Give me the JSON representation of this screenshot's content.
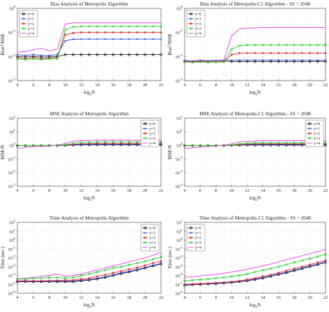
{
  "chart_data": [
    {
      "type": "line",
      "title": "Bias Analysis of Metropolis Algorithm",
      "xlabel": "log2N",
      "ylabel": "Bias2/MSE",
      "xlim": [
        4,
        22
      ],
      "yscale": "log",
      "ylim_exp": [
        -3,
        0
      ],
      "xticks": [
        4,
        6,
        8,
        10,
        12,
        14,
        16,
        18,
        20,
        22
      ],
      "ytick_exp": [
        -3,
        -2,
        -1,
        0
      ],
      "grid": true,
      "legend": "upper-left",
      "x": [
        4,
        5,
        6,
        7,
        8,
        9,
        10,
        11,
        12,
        13,
        14,
        15,
        16,
        17,
        18,
        19,
        20,
        21,
        22
      ],
      "series": [
        {
          "name": "y=0",
          "color": "#222222",
          "marker": "o",
          "values": [
            0.01,
            0.0095,
            0.01,
            0.0095,
            0.0095,
            0.01,
            0.012,
            0.012,
            0.012,
            0.012,
            0.012,
            0.012,
            0.012,
            0.012,
            0.012,
            0.012,
            0.012,
            0.012,
            0.012
          ]
        },
        {
          "name": "y=1",
          "color": "#1f3fd8",
          "marker": "+",
          "values": [
            0.012,
            0.011,
            0.012,
            0.011,
            0.011,
            0.012,
            0.045,
            0.052,
            0.053,
            0.053,
            0.053,
            0.053,
            0.053,
            0.053,
            0.053,
            0.053,
            0.053,
            0.053,
            0.053
          ]
        },
        {
          "name": "y=2",
          "color": "#e0202a",
          "marker": "*",
          "values": [
            0.009,
            0.008,
            0.009,
            0.008,
            0.0085,
            0.009,
            0.08,
            0.095,
            0.1,
            0.1,
            0.1,
            0.1,
            0.1,
            0.1,
            0.1,
            0.1,
            0.1,
            0.1,
            0.1
          ]
        },
        {
          "name": "y=3",
          "color": "#21d42a",
          "marker": "x",
          "values": [
            0.008,
            0.0075,
            0.008,
            0.0075,
            0.008,
            0.008,
            0.13,
            0.17,
            0.18,
            0.18,
            0.18,
            0.18,
            0.18,
            0.18,
            0.18,
            0.18,
            0.18,
            0.18,
            0.18
          ]
        },
        {
          "name": "y=4",
          "color": "#e23be2",
          "marker": "-",
          "values": [
            0.015,
            0.016,
            0.019,
            0.022,
            0.017,
            0.02,
            0.22,
            0.25,
            0.25,
            0.25,
            0.25,
            0.25,
            0.25,
            0.25,
            0.25,
            0.25,
            0.25,
            0.25,
            0.25
          ]
        }
      ]
    },
    {
      "type": "line",
      "title": "Bias Analysis of Metropolis-C1 Algorithm - SS = 2048",
      "xlabel": "log2N",
      "ylabel": "Bias2/MSE",
      "xlim": [
        4,
        22
      ],
      "yscale": "log",
      "ylim_exp": [
        -3,
        0
      ],
      "xticks": [
        4,
        6,
        8,
        10,
        12,
        14,
        16,
        18,
        20,
        22
      ],
      "ytick_exp": [
        -3,
        -2,
        -1,
        0
      ],
      "grid": true,
      "legend": "upper-left",
      "x": [
        4,
        5,
        6,
        7,
        8,
        9,
        10,
        11,
        12,
        13,
        14,
        15,
        16,
        17,
        18,
        19,
        20,
        21,
        22
      ],
      "series": [
        {
          "name": "y=0",
          "color": "#222222",
          "marker": "o",
          "values": [
            0.0065,
            0.006,
            0.0065,
            0.006,
            0.0062,
            0.0065,
            0.0062,
            0.0062,
            0.0062,
            0.0062,
            0.0062,
            0.0062,
            0.0062,
            0.0062,
            0.0062,
            0.0062,
            0.0062,
            0.0062,
            0.0062
          ]
        },
        {
          "name": "y=1",
          "color": "#1f3fd8",
          "marker": "+",
          "values": [
            0.007,
            0.0065,
            0.007,
            0.0065,
            0.0068,
            0.007,
            0.007,
            0.007,
            0.007,
            0.007,
            0.007,
            0.007,
            0.007,
            0.007,
            0.007,
            0.007,
            0.007,
            0.007,
            0.007
          ]
        },
        {
          "name": "y=2",
          "color": "#e0202a",
          "marker": "*",
          "values": [
            0.006,
            0.0058,
            0.006,
            0.0058,
            0.006,
            0.006,
            0.012,
            0.014,
            0.014,
            0.014,
            0.014,
            0.014,
            0.014,
            0.014,
            0.014,
            0.014,
            0.014,
            0.014,
            0.014
          ]
        },
        {
          "name": "y=3",
          "color": "#21d42a",
          "marker": "x",
          "values": [
            0.0062,
            0.0058,
            0.0062,
            0.0058,
            0.006,
            0.0062,
            0.02,
            0.028,
            0.03,
            0.03,
            0.03,
            0.03,
            0.03,
            0.03,
            0.03,
            0.03,
            0.03,
            0.03,
            0.03
          ]
        },
        {
          "name": "y=4",
          "color": "#e23be2",
          "marker": "-",
          "values": [
            0.007,
            0.0065,
            0.0072,
            0.0068,
            0.007,
            0.0072,
            0.07,
            0.14,
            0.15,
            0.155,
            0.16,
            0.16,
            0.16,
            0.16,
            0.16,
            0.16,
            0.16,
            0.16,
            0.16
          ]
        }
      ]
    },
    {
      "type": "line",
      "title": "MSE Analysis of Metropolis Algorithm",
      "xlabel": "log2N",
      "ylabel": "MSE/N",
      "xlim": [
        4,
        22
      ],
      "yscale": "log",
      "ylim_exp": [
        -3,
        2
      ],
      "xticks": [
        4,
        6,
        8,
        10,
        12,
        14,
        16,
        18,
        20,
        22
      ],
      "ytick_exp": [
        -3,
        -2,
        -1,
        0,
        1,
        2
      ],
      "grid": true,
      "legend": "upper-right",
      "x": [
        4,
        5,
        6,
        7,
        8,
        9,
        10,
        11,
        12,
        13,
        14,
        15,
        16,
        17,
        18,
        19,
        20,
        21,
        22
      ],
      "series": [
        {
          "name": "y=0",
          "color": "#222222",
          "marker": "o",
          "values": [
            0.95,
            0.95,
            0.95,
            0.95,
            0.96,
            0.97,
            1.0,
            1.05,
            1.08,
            1.1,
            1.1,
            1.1,
            1.1,
            1.1,
            1.1,
            1.1,
            1.1,
            1.1,
            1.1
          ]
        },
        {
          "name": "y=1",
          "color": "#1f3fd8",
          "marker": "+",
          "values": [
            0.96,
            0.96,
            0.96,
            0.96,
            0.97,
            0.98,
            1.02,
            1.1,
            1.15,
            1.18,
            1.2,
            1.2,
            1.2,
            1.2,
            1.2,
            1.2,
            1.2,
            1.2,
            1.2
          ]
        },
        {
          "name": "y=2",
          "color": "#e0202a",
          "marker": "*",
          "values": [
            0.97,
            0.97,
            0.97,
            0.97,
            0.98,
            0.99,
            1.05,
            1.2,
            1.3,
            1.35,
            1.38,
            1.4,
            1.4,
            1.4,
            1.4,
            1.4,
            1.4,
            1.4,
            1.4
          ]
        },
        {
          "name": "y=3",
          "color": "#21d42a",
          "marker": "x",
          "values": [
            0.98,
            0.98,
            0.98,
            0.98,
            0.99,
            1.0,
            1.1,
            1.4,
            1.6,
            1.7,
            1.75,
            1.8,
            1.8,
            1.8,
            1.8,
            1.8,
            1.8,
            1.8,
            1.8
          ]
        },
        {
          "name": "y=4",
          "color": "#e23be2",
          "marker": "-",
          "values": [
            0.6,
            0.7,
            0.8,
            0.85,
            0.9,
            1.0,
            1.4,
            2.0,
            2.2,
            2.3,
            2.4,
            2.4,
            2.4,
            2.4,
            2.4,
            2.4,
            2.4,
            2.4,
            2.4
          ]
        }
      ]
    },
    {
      "type": "line",
      "title": "MSE Analysis of Metropolis-C1 Algorithm - SS = 2048",
      "xlabel": "log2N",
      "ylabel": "MSE/N",
      "xlim": [
        4,
        22
      ],
      "yscale": "log",
      "ylim_exp": [
        -3,
        2
      ],
      "xticks": [
        4,
        6,
        8,
        10,
        12,
        14,
        16,
        18,
        20,
        22
      ],
      "ytick_exp": [
        -3,
        -2,
        -1,
        0,
        1,
        2
      ],
      "grid": true,
      "legend": "upper-right",
      "x": [
        4,
        5,
        6,
        7,
        8,
        9,
        10,
        11,
        12,
        13,
        14,
        15,
        16,
        17,
        18,
        19,
        20,
        21,
        22
      ],
      "series": [
        {
          "name": "y=0",
          "color": "#222222",
          "marker": "o",
          "values": [
            0.95,
            0.95,
            0.95,
            0.95,
            0.96,
            0.97,
            1.0,
            1.03,
            1.05,
            1.05,
            1.05,
            1.05,
            1.05,
            1.05,
            1.05,
            1.05,
            1.05,
            1.05,
            1.05
          ]
        },
        {
          "name": "y=1",
          "color": "#1f3fd8",
          "marker": "+",
          "values": [
            0.96,
            0.96,
            0.96,
            0.96,
            0.97,
            0.98,
            1.02,
            1.08,
            1.12,
            1.14,
            1.15,
            1.15,
            1.15,
            1.15,
            1.15,
            1.15,
            1.15,
            1.15,
            1.15
          ]
        },
        {
          "name": "y=2",
          "color": "#e0202a",
          "marker": "*",
          "values": [
            0.97,
            0.97,
            0.97,
            0.97,
            0.98,
            0.99,
            1.04,
            1.15,
            1.25,
            1.3,
            1.3,
            1.3,
            1.3,
            1.3,
            1.3,
            1.3,
            1.3,
            1.3,
            1.3
          ]
        },
        {
          "name": "y=3",
          "color": "#21d42a",
          "marker": "x",
          "values": [
            0.98,
            0.98,
            0.98,
            0.98,
            0.99,
            1.0,
            1.08,
            1.3,
            1.45,
            1.5,
            1.55,
            1.55,
            1.55,
            1.55,
            1.55,
            1.55,
            1.55,
            1.55,
            1.55
          ]
        },
        {
          "name": "y=4",
          "color": "#e23be2",
          "marker": "-",
          "values": [
            0.6,
            0.65,
            0.75,
            0.82,
            0.9,
            1.0,
            1.3,
            1.8,
            2.0,
            2.1,
            2.2,
            2.2,
            2.2,
            2.2,
            2.2,
            2.2,
            2.2,
            2.2,
            2.2
          ]
        }
      ]
    },
    {
      "type": "line",
      "title": "Time Analysis of Metropolis Algorithm",
      "xlabel": "log2N",
      "ylabel": "Time (sec.)",
      "xlim": [
        4,
        22
      ],
      "yscale": "log",
      "ylim_exp": [
        -6,
        2
      ],
      "xticks": [
        4,
        6,
        8,
        10,
        12,
        14,
        16,
        18,
        20,
        22
      ],
      "ytick_exp": [
        -6,
        -5,
        -4,
        -3,
        -2,
        -1,
        0,
        1,
        2
      ],
      "grid": true,
      "legend": "upper-right",
      "x": [
        4,
        5,
        6,
        7,
        8,
        9,
        10,
        11,
        12,
        13,
        14,
        15,
        16,
        17,
        18,
        19,
        20,
        21,
        22
      ],
      "series": [
        {
          "name": "y=0",
          "color": "#222222",
          "marker": "o",
          "values": [
            2e-05,
            2e-05,
            2e-05,
            2e-05,
            2e-05,
            2e-05,
            2e-05,
            2e-05,
            2.5e-05,
            3e-05,
            4e-05,
            6e-05,
            0.0001,
            0.00016,
            0.00025,
            0.0004,
            0.0007,
            0.0012,
            0.002
          ]
        },
        {
          "name": "y=1",
          "color": "#1f3fd8",
          "marker": "+",
          "values": [
            2.2e-05,
            2.2e-05,
            2.2e-05,
            2.2e-05,
            2.2e-05,
            2.3e-05,
            2.3e-05,
            2.4e-05,
            3e-05,
            3.6e-05,
            5e-05,
            7e-05,
            0.00012,
            0.0002,
            0.0003,
            0.0005,
            0.0008,
            0.0014,
            0.0023
          ]
        },
        {
          "name": "y=2",
          "color": "#e0202a",
          "marker": "*",
          "values": [
            2.5e-05,
            2.5e-05,
            2.5e-05,
            2.5e-05,
            2.6e-05,
            2.8e-05,
            3e-05,
            3e-05,
            4e-05,
            5e-05,
            8e-05,
            0.00012,
            0.0002,
            0.0003,
            0.0005,
            0.0008,
            0.0014,
            0.0025,
            0.004
          ]
        },
        {
          "name": "y=3",
          "color": "#21d42a",
          "marker": "x",
          "values": [
            4e-05,
            4e-05,
            5e-05,
            5e-05,
            6e-05,
            6e-05,
            5e-05,
            6e-05,
            0.0001,
            0.00015,
            0.00025,
            0.0004,
            0.0007,
            0.001,
            0.0016,
            0.0025,
            0.004,
            0.007,
            0.012
          ]
        },
        {
          "name": "y=4",
          "color": "#e23be2",
          "marker": "-",
          "values": [
            4e-05,
            5e-05,
            6e-05,
            8e-05,
            0.0001,
            0.00015,
            8e-05,
            0.0001,
            0.00015,
            0.00025,
            0.0004,
            0.0007,
            0.0012,
            0.002,
            0.0035,
            0.006,
            0.01,
            0.02,
            0.04
          ]
        }
      ]
    },
    {
      "type": "line",
      "title": "Time Analysis of Metropolis-C1 Algorithm - SS = 2048",
      "xlabel": "log2N",
      "ylabel": "Time (sec.)",
      "xlim": [
        4,
        22
      ],
      "yscale": "log",
      "ylim_exp": [
        -6,
        2
      ],
      "xticks": [
        4,
        6,
        8,
        10,
        12,
        14,
        16,
        18,
        20,
        22
      ],
      "ytick_exp": [
        -6,
        -5,
        -4,
        -3,
        -2,
        -1,
        0,
        1,
        2
      ],
      "grid": true,
      "legend": "upper-left",
      "x": [
        4,
        5,
        6,
        7,
        8,
        9,
        10,
        11,
        12,
        13,
        14,
        15,
        16,
        17,
        18,
        19,
        20,
        21,
        22
      ],
      "series": [
        {
          "name": "y=0",
          "color": "#222222",
          "marker": "o",
          "values": [
            8e-06,
            9e-06,
            1e-05,
            1.1e-05,
            1.2e-05,
            1.4e-05,
            1.6e-05,
            2e-05,
            2.5e-05,
            3.5e-05,
            5e-05,
            8e-05,
            0.00013,
            0.0002,
            0.00035,
            0.0006,
            0.001,
            0.0017,
            0.003
          ]
        },
        {
          "name": "y=1",
          "color": "#1f3fd8",
          "marker": "+",
          "values": [
            9e-06,
            1e-05,
            1.1e-05,
            1.2e-05,
            1.3e-05,
            1.5e-05,
            1.8e-05,
            2.2e-05,
            2.8e-05,
            4e-05,
            6e-05,
            9e-05,
            0.00015,
            0.00024,
            0.0004,
            0.0007,
            0.0012,
            0.002,
            0.0035
          ]
        },
        {
          "name": "y=2",
          "color": "#e0202a",
          "marker": "*",
          "values": [
            1e-05,
            1.1e-05,
            1.2e-05,
            1.3e-05,
            1.5e-05,
            1.7e-05,
            2e-05,
            2.5e-05,
            3.5e-05,
            5e-05,
            8e-05,
            0.00012,
            0.0002,
            0.00035,
            0.0006,
            0.001,
            0.0017,
            0.003,
            0.005
          ]
        },
        {
          "name": "y=3",
          "color": "#21d42a",
          "marker": "x",
          "values": [
            2.5e-05,
            3e-05,
            3.5e-05,
            4e-05,
            5e-05,
            6e-05,
            8e-05,
            0.0001,
            0.00015,
            0.00025,
            0.0004,
            0.0006,
            0.001,
            0.0017,
            0.003,
            0.005,
            0.008,
            0.014,
            0.025
          ]
        },
        {
          "name": "y=4",
          "color": "#e23be2",
          "marker": "-",
          "values": [
            6e-05,
            7e-05,
            9e-05,
            0.00011,
            0.00014,
            0.00018,
            0.00025,
            0.00035,
            0.0005,
            0.0008,
            0.0013,
            0.002,
            0.0035,
            0.006,
            0.01,
            0.017,
            0.03,
            0.05,
            0.09
          ]
        }
      ]
    }
  ]
}
